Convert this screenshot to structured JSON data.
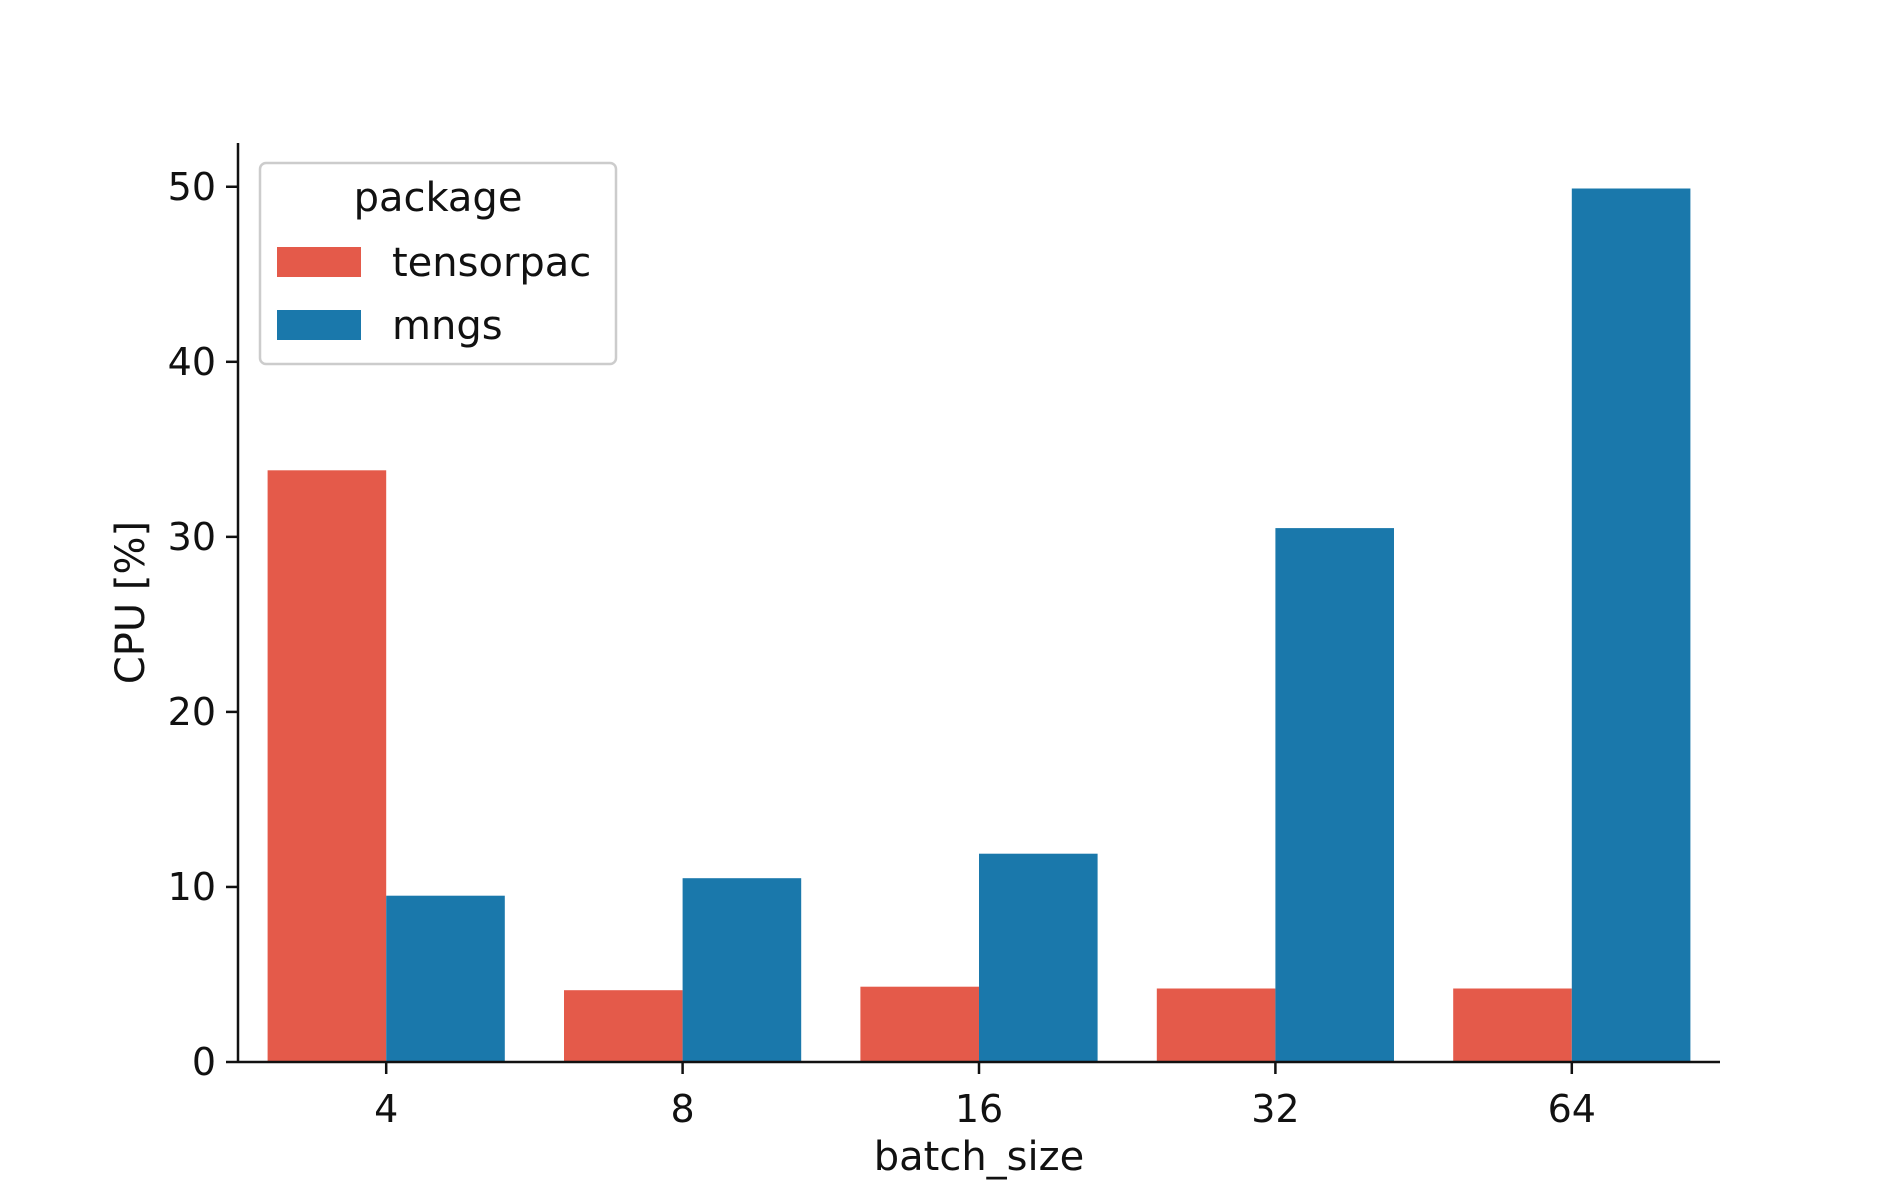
{
  "chart_data": {
    "type": "bar",
    "title": "",
    "xlabel": "batch_size",
    "ylabel": "CPU [%]",
    "categories": [
      "4",
      "8",
      "16",
      "32",
      "64"
    ],
    "series": [
      {
        "name": "tensorpac",
        "color": "#e45a4a",
        "values": [
          33.8,
          4.1,
          4.3,
          4.2,
          4.2
        ]
      },
      {
        "name": "mngs",
        "color": "#1a78ab",
        "values": [
          9.5,
          10.5,
          11.9,
          30.5,
          49.9
        ]
      }
    ],
    "ylim": [
      0,
      52.5
    ],
    "yticks": [
      0,
      10,
      20,
      30,
      40,
      50
    ],
    "grid": false,
    "legend": {
      "title": "package",
      "placement": "top-left"
    }
  }
}
